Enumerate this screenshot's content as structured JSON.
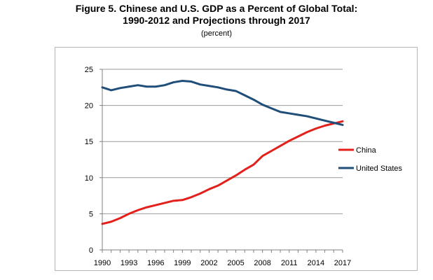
{
  "header": {
    "title_line1": "Figure 5. Chinese and U.S. GDP as a Percent of Global Total:",
    "title_line2": "1990-2012 and Projections through 2017",
    "subtitle": "(percent)"
  },
  "chart_data": {
    "type": "line",
    "title": "Figure 5. Chinese and U.S. GDP as a Percent of Global Total: 1990-2012 and Projections through 2017",
    "subtitle": "(percent)",
    "xlabel": "",
    "ylabel": "",
    "x": [
      1990,
      1991,
      1992,
      1993,
      1994,
      1995,
      1996,
      1997,
      1998,
      1999,
      2000,
      2001,
      2002,
      2003,
      2004,
      2005,
      2006,
      2007,
      2008,
      2009,
      2010,
      2011,
      2012,
      2013,
      2014,
      2015,
      2016,
      2017
    ],
    "x_ticks": [
      "1990",
      "1993",
      "1996",
      "1999",
      "2002",
      "2005",
      "2008",
      "2011",
      "2014",
      "2017"
    ],
    "y_ticks": [
      "0",
      "5",
      "10",
      "15",
      "20",
      "25"
    ],
    "ylim": [
      0,
      25
    ],
    "grid": "horizontal",
    "legend_position": "right",
    "series": [
      {
        "name": "China",
        "color": "#e3201b",
        "values": [
          3.6,
          3.9,
          4.4,
          5.0,
          5.5,
          5.9,
          6.2,
          6.5,
          6.8,
          6.9,
          7.3,
          7.8,
          8.4,
          8.9,
          9.6,
          10.3,
          11.1,
          11.8,
          13.0,
          13.7,
          14.4,
          15.1,
          15.7,
          16.3,
          16.8,
          17.2,
          17.5,
          17.8
        ]
      },
      {
        "name": "United States",
        "color": "#1f4e79",
        "values": [
          22.5,
          22.1,
          22.4,
          22.6,
          22.8,
          22.6,
          22.6,
          22.8,
          23.2,
          23.4,
          23.3,
          22.9,
          22.7,
          22.5,
          22.2,
          22.0,
          21.4,
          20.8,
          20.1,
          19.6,
          19.1,
          18.9,
          18.7,
          18.5,
          18.2,
          17.9,
          17.6,
          17.3
        ]
      }
    ]
  }
}
